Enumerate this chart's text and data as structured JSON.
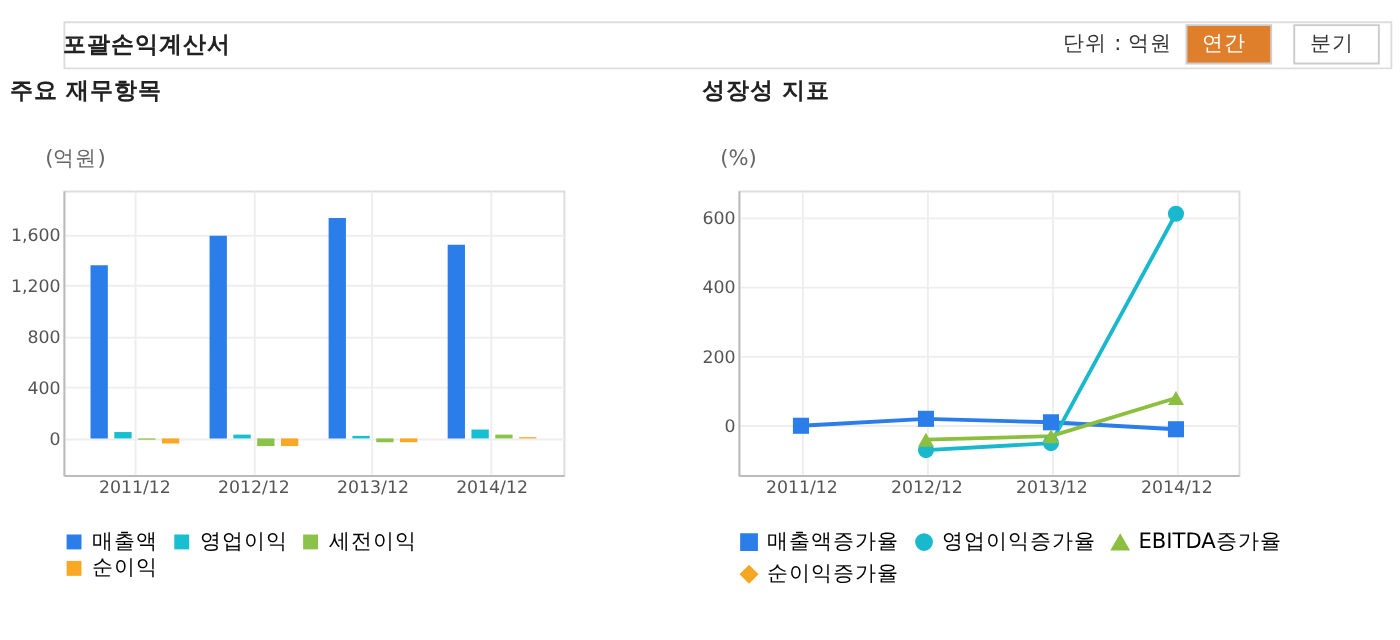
{
  "chart_data": [
    {
      "type": "bar",
      "title": "주요 재무항목",
      "ylabel": "(억원)",
      "annotations": [
        "포괄손익계산서",
        "단위 : 억원",
        "연간",
        "분기"
      ],
      "categories": [
        "2011/12",
        "2012/12",
        "2013/12",
        "2014/12"
      ],
      "series": [
        {
          "name": "매출액",
          "color": "#2b7de9",
          "values": [
            1360,
            1590,
            1730,
            1520
          ]
        },
        {
          "name": "영업이익",
          "color": "#17bfd0",
          "values": [
            50,
            30,
            20,
            70
          ]
        },
        {
          "name": "세전이익",
          "color": "#8bc34a",
          "values": [
            -10,
            -60,
            -30,
            30
          ]
        },
        {
          "name": "순이익",
          "color": "#f9a825",
          "values": [
            -40,
            -60,
            -30,
            10
          ]
        }
      ],
      "ylim": [
        -288,
        1946
      ],
      "yticks": [
        {
          "value": 0,
          "label": "0"
        },
        {
          "value": 400,
          "label": "400"
        },
        {
          "value": 800,
          "label": "800"
        },
        {
          "value": 1200,
          "label": "1,200"
        },
        {
          "value": 1600,
          "label": "1,600"
        }
      ],
      "grid": true,
      "legend": "bottom"
    },
    {
      "type": "line",
      "title": "성장성 지표",
      "ylabel": "(%)",
      "categories": [
        "2011/12",
        "2012/12",
        "2013/12",
        "2014/12"
      ],
      "series": [
        {
          "name": "매출액증가율",
          "color": "#2b7de9",
          "marker": "square",
          "values": [
            0,
            20,
            10,
            -10
          ]
        },
        {
          "name": "영업이익증가율",
          "color": "#1ab8cc",
          "marker": "circle",
          "values": [
            null,
            -70,
            -50,
            610
          ]
        },
        {
          "name": "EBITDA증가율",
          "color": "#8cbf3f",
          "marker": "triangle",
          "values": [
            null,
            -40,
            -30,
            80
          ]
        },
        {
          "name": "순이익증가율",
          "color": "#f5a623",
          "marker": "diamond",
          "values": [
            null,
            null,
            null,
            null
          ]
        }
      ],
      "ylim": [
        -142,
        677
      ],
      "yticks": [
        0,
        200,
        400,
        600
      ],
      "grid": true,
      "legend": "bottom"
    }
  ]
}
